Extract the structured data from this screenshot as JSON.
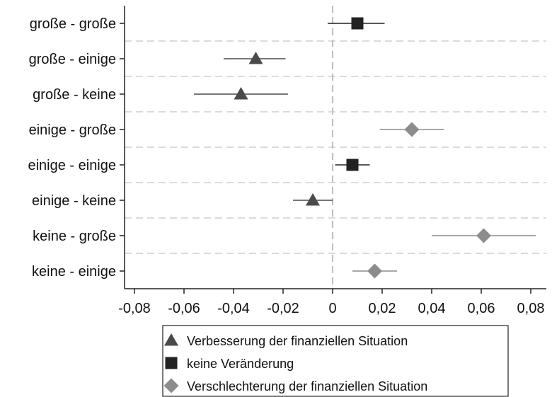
{
  "chart_data": {
    "type": "scatter",
    "title": "",
    "xlabel": "",
    "ylabel": "",
    "xlim": [
      -0.08,
      0.085
    ],
    "x_ticks": [
      -0.08,
      -0.06,
      -0.04,
      -0.02,
      0,
      0.02,
      0.04,
      0.06,
      0.08
    ],
    "x_tick_labels": [
      "-0,08",
      "-0,06",
      "-0,04",
      "-0,02",
      "0",
      "0,02",
      "0,04",
      "0,06",
      "0,08"
    ],
    "reference_line_x": 0,
    "grid": "horizontal dashed between categories",
    "categories": [
      "große - große",
      "große - einige",
      "große - keine",
      "einige - große",
      "einige - einige",
      "einige - keine",
      "keine - große",
      "keine - einige"
    ],
    "points": [
      {
        "category": "große - große",
        "series": "keine Veränderung",
        "estimate": 0.01,
        "ci_low": -0.002,
        "ci_high": 0.021
      },
      {
        "category": "große - einige",
        "series": "Verbesserung der finanziellen Situation",
        "estimate": -0.031,
        "ci_low": -0.044,
        "ci_high": -0.019
      },
      {
        "category": "große - keine",
        "series": "Verbesserung der finanziellen Situation",
        "estimate": -0.037,
        "ci_low": -0.056,
        "ci_high": -0.018
      },
      {
        "category": "einige - große",
        "series": "Verschlechterung der finanziellen Situation",
        "estimate": 0.032,
        "ci_low": 0.019,
        "ci_high": 0.045
      },
      {
        "category": "einige - einige",
        "series": "keine Veränderung",
        "estimate": 0.008,
        "ci_low": 0.001,
        "ci_high": 0.015
      },
      {
        "category": "einige - keine",
        "series": "Verbesserung der finanziellen Situation",
        "estimate": -0.008,
        "ci_low": -0.016,
        "ci_high": 0.0
      },
      {
        "category": "keine - große",
        "series": "Verschlechterung der finanziellen Situation",
        "estimate": 0.061,
        "ci_low": 0.04,
        "ci_high": 0.082
      },
      {
        "category": "keine - einige",
        "series": "Verschlechterung der finanziellen Situation",
        "estimate": 0.017,
        "ci_low": 0.008,
        "ci_high": 0.026
      }
    ],
    "series": [
      {
        "name": "Verbesserung der finanziellen Situation",
        "marker": "triangle",
        "color": "#4a4a4a"
      },
      {
        "name": "keine Veränderung",
        "marker": "square",
        "color": "#222222"
      },
      {
        "name": "Verschlechterung der finanziellen Situation",
        "marker": "diamond",
        "color": "#8c8c8c"
      }
    ],
    "legend_position": "bottom"
  }
}
